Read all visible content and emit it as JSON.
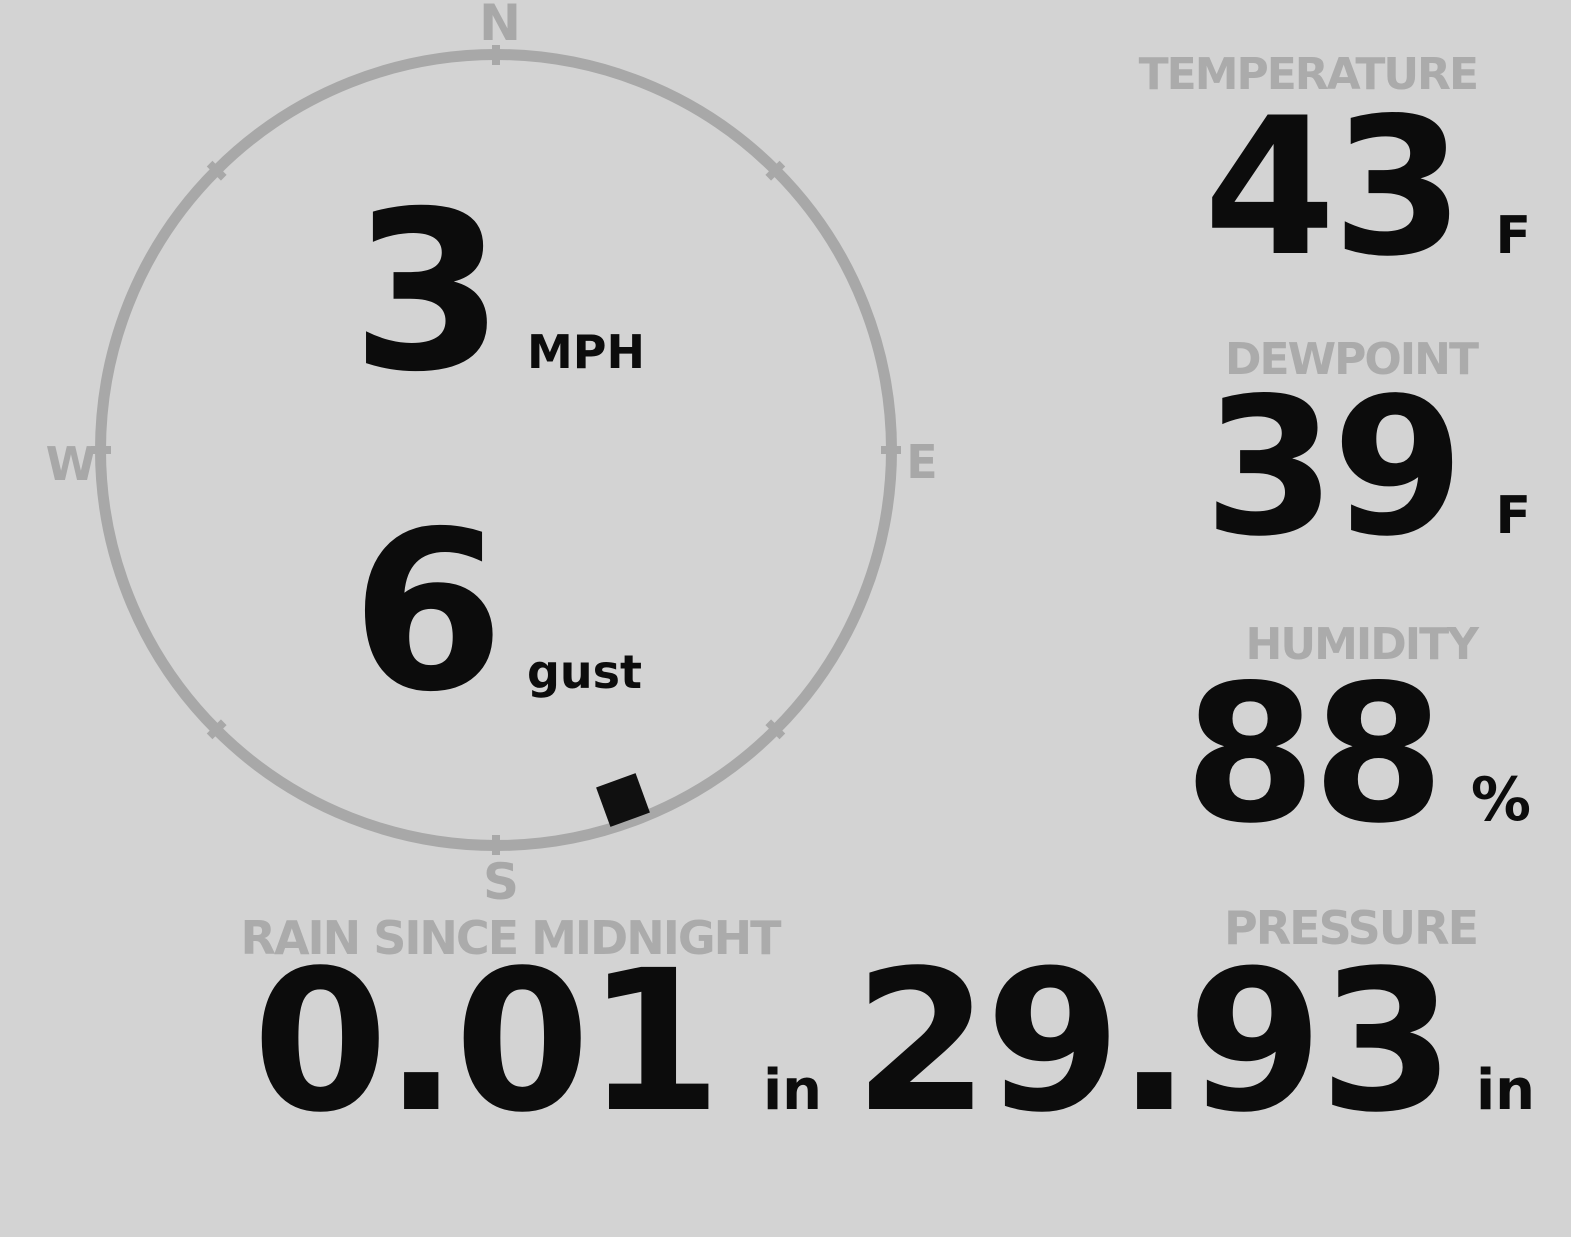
{
  "colors": {
    "background": "#d3d3d3",
    "muted_gray": "#ababab",
    "ink": "#0c0c0c",
    "circle_gray": "#a8a8a8"
  },
  "compass": {
    "cardinals": {
      "north": "N",
      "east": "E",
      "south": "S",
      "west": "W"
    },
    "wind_speed": {
      "value": "3",
      "unit": "MPH"
    },
    "wind_gust": {
      "value": "6",
      "unit": "gust"
    },
    "direction_deg": 160
  },
  "metrics": {
    "temperature": {
      "label": "TEMPERATURE",
      "value": "43",
      "unit": "F"
    },
    "dewpoint": {
      "label": "DEWPOINT",
      "value": "39",
      "unit": "F"
    },
    "humidity": {
      "label": "HUMIDITY",
      "value": "88",
      "unit": "%"
    },
    "rain": {
      "label": "RAIN SINCE MIDNIGHT",
      "value": "0.01",
      "unit": "in"
    },
    "pressure": {
      "label": "PRESSURE",
      "value": "29.93",
      "unit": "in"
    }
  }
}
